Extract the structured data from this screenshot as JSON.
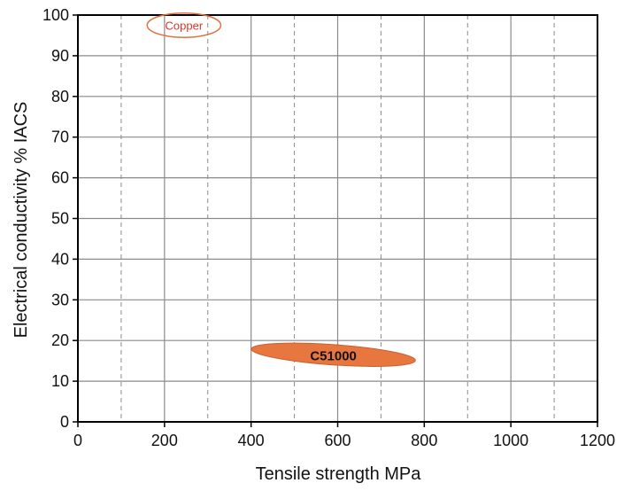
{
  "chart_data": {
    "type": "scatter",
    "title": "",
    "xlabel": "Tensile strength MPa",
    "ylabel": "Electrical conductivity % IACS",
    "xlim": [
      0,
      1200
    ],
    "ylim": [
      0,
      100
    ],
    "x_ticks": [
      0,
      200,
      400,
      600,
      800,
      1000,
      1200
    ],
    "x_tick_labels": [
      "0",
      "200",
      "400",
      "600",
      "800",
      "1000",
      "1200"
    ],
    "y_ticks": [
      0,
      10,
      20,
      30,
      40,
      50,
      60,
      70,
      80,
      90,
      100
    ],
    "y_tick_labels": [
      "0",
      "10",
      "20",
      "30",
      "40",
      "50",
      "60",
      "70",
      "80",
      "90",
      "100"
    ],
    "grid": {
      "major_x": [
        200,
        400,
        600,
        800,
        1000
      ],
      "minor_x_dashed": [
        100,
        300,
        500,
        700,
        900,
        1100
      ],
      "major_y": [
        10,
        20,
        30,
        40,
        50,
        60,
        70,
        80,
        90
      ]
    },
    "regions": [
      {
        "label": "Copper",
        "tensile_min": 160,
        "tensile_max": 330,
        "tensile_center": 245,
        "conductivity_min": 95,
        "conductivity_max": 101,
        "conductivity_center": 97.5,
        "style": "outline",
        "color": "#e07040",
        "label_color": "#d9362b",
        "tilt_deg": 0
      },
      {
        "label": "C51000",
        "tensile_min": 400,
        "tensile_max": 780,
        "tensile_center": 590,
        "conductivity_min": 14,
        "conductivity_max": 19,
        "conductivity_center": 16.5,
        "style": "filled",
        "color": "#e8763f",
        "label_color": "#111111",
        "tilt_deg": 4
      }
    ],
    "colors": {
      "axis": "#000000",
      "grid": "#8a8a8a",
      "text": "#111111"
    }
  }
}
